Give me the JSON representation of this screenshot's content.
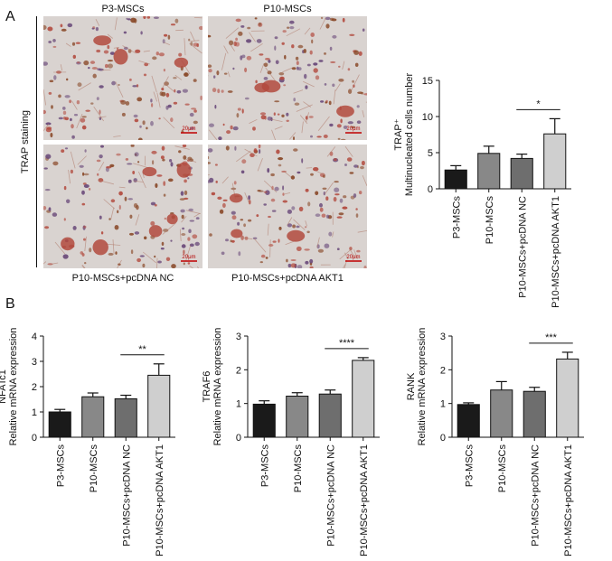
{
  "figure": {
    "panel_a_letter": "A",
    "panel_b_letter": "B",
    "trap_staining_label": "TRAP staining",
    "micrographs": [
      {
        "label": "P3-MSCs",
        "scale": "20μm"
      },
      {
        "label": "P10-MSCs",
        "scale": "20μm"
      },
      {
        "label": "P10-MSCs+pcDNA NC",
        "scale": "20μm"
      },
      {
        "label": "P10-MSCs+pcDNA AKT1",
        "scale": "20μm"
      }
    ]
  },
  "colors": {
    "bar_fills": [
      "#1a1a1a",
      "#888888",
      "#6e6e6e",
      "#cfcfcf"
    ],
    "stain_red": "#b24a3e",
    "stain_brown": "#8a4a2a",
    "stain_purple": "#6a4a7a",
    "background_tissue": "#d9d3d0"
  },
  "chart_data": [
    {
      "type": "bar",
      "panel": "A",
      "categories": [
        "P3-MSCs",
        "P10-MSCs",
        "P10-MSCs+pcDNA NC",
        "P10-MSCs+pcDNA AKT1"
      ],
      "values": [
        2.6,
        4.9,
        4.2,
        7.6
      ],
      "errors": [
        0.6,
        1.0,
        0.6,
        2.1
      ],
      "ylabel_line1": "TRAP⁺",
      "ylabel_line2": "Multinucleated cells number",
      "ylim": [
        0,
        15
      ],
      "yticks": [
        0,
        5,
        10,
        15
      ],
      "significance": {
        "from": 2,
        "to": 3,
        "text": "*"
      }
    },
    {
      "type": "bar",
      "panel": "B",
      "categories": [
        "P3-MSCs",
        "P10-MSCs",
        "P10-MSCs+pcDNA NC",
        "P10-MSCs+pcDNA AKT1"
      ],
      "values": [
        1.0,
        1.6,
        1.52,
        2.45
      ],
      "errors": [
        0.1,
        0.15,
        0.14,
        0.45
      ],
      "ylabel_line1": "NFATc1",
      "ylabel_line2": "Relative mRNA expression",
      "ylim": [
        0,
        4
      ],
      "yticks": [
        0,
        1,
        2,
        3,
        4
      ],
      "significance": {
        "from": 2,
        "to": 3,
        "text": "**"
      }
    },
    {
      "type": "bar",
      "panel": "B",
      "categories": [
        "P3-MSCs",
        "P10-MSCs",
        "P10-MSCs+pcDNA NC",
        "P10-MSCs+pcDNA AKT1"
      ],
      "values": [
        0.98,
        1.22,
        1.28,
        2.28
      ],
      "errors": [
        0.1,
        0.1,
        0.12,
        0.08
      ],
      "ylabel_line1": "TRAF6",
      "ylabel_line2": "Relative mRNA expression",
      "ylim": [
        0,
        3
      ],
      "yticks": [
        0,
        1,
        2,
        3
      ],
      "significance": {
        "from": 2,
        "to": 3,
        "text": "****"
      }
    },
    {
      "type": "bar",
      "panel": "B",
      "categories": [
        "P3-MSCs",
        "P10-MSCs",
        "P10-MSCs+pcDNA NC",
        "P10-MSCs+pcDNA AKT1"
      ],
      "values": [
        0.97,
        1.4,
        1.36,
        2.32
      ],
      "errors": [
        0.05,
        0.25,
        0.12,
        0.2
      ],
      "ylabel_line1": "RANK",
      "ylabel_line2": "Relative mRNA expression",
      "ylim": [
        0,
        3
      ],
      "yticks": [
        0,
        1,
        2,
        3
      ],
      "significance": {
        "from": 2,
        "to": 3,
        "text": "***"
      }
    }
  ]
}
